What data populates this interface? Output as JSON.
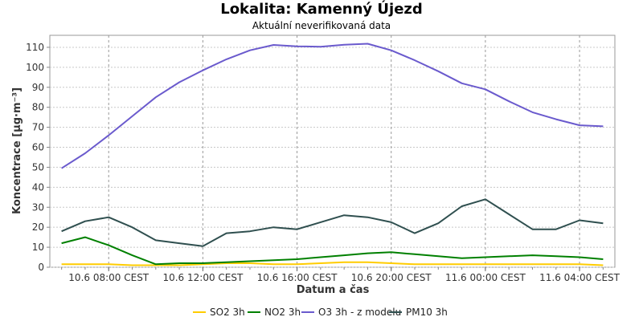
{
  "chart_data": {
    "type": "line",
    "title": "Lokalita: Kamenný Újezd",
    "subtitle": "Aktuální neverifikovaná data",
    "xlabel": "Datum a čas",
    "ylabel": "Koncentrace [µg·m⁻³]",
    "ylim": [
      0,
      116
    ],
    "yticks": [
      0,
      10,
      20,
      30,
      40,
      50,
      60,
      70,
      80,
      90,
      100,
      110
    ],
    "x": [
      6,
      7,
      8,
      9,
      10,
      11,
      12,
      13,
      14,
      15,
      16,
      17,
      18,
      19,
      20,
      21,
      22,
      23,
      24,
      25,
      26,
      27,
      28,
      29
    ],
    "xlim": [
      5.5,
      29.5
    ],
    "xticks": [
      {
        "x": 8,
        "label": "10.6 08:00 CEST"
      },
      {
        "x": 12,
        "label": "10.6 12:00 CEST"
      },
      {
        "x": 16,
        "label": "10.6 16:00 CEST"
      },
      {
        "x": 20,
        "label": "10.6 20:00 CEST"
      },
      {
        "x": 24,
        "label": "11.6 00:00 CEST"
      },
      {
        "x": 28,
        "label": "11.6 04:00 CEST"
      }
    ],
    "grid": true,
    "legend": "bottom",
    "series": [
      {
        "name": "SO2 3h",
        "color": "#ffcc00",
        "values": [
          1.5,
          1.5,
          1.5,
          1,
          1,
          1,
          1.5,
          2,
          2,
          1.5,
          1.5,
          2,
          2.5,
          2.5,
          2,
          1.5,
          1.5,
          1.5,
          1.5,
          1.5,
          1.5,
          1.5,
          1.5,
          1
        ]
      },
      {
        "name": "NO2 3h",
        "color": "#008000",
        "values": [
          12,
          15,
          11,
          6,
          1.5,
          2,
          2,
          2.5,
          3,
          3.5,
          4,
          5,
          6,
          7,
          7.5,
          6.5,
          5.5,
          4.5,
          5,
          5.5,
          6,
          5.5,
          5,
          4
        ]
      },
      {
        "name": "O3 3h - z modelu",
        "color": "#6a5acd",
        "values": [
          49.5,
          57,
          66,
          75.5,
          85,
          92.5,
          98.5,
          104,
          108.5,
          111.2,
          110.5,
          110.3,
          111.3,
          111.8,
          108.5,
          103.5,
          98,
          92,
          89,
          83,
          77.5,
          74,
          71,
          70.5
        ]
      },
      {
        "name": "PM10 3h",
        "color": "#2f4f4f",
        "values": [
          18,
          23,
          25,
          20,
          13.5,
          12,
          10.5,
          17,
          18,
          20,
          19,
          22.5,
          26,
          25,
          22.5,
          17,
          22,
          30.5,
          34,
          26.5,
          19,
          19,
          23.5,
          22
        ]
      }
    ]
  }
}
